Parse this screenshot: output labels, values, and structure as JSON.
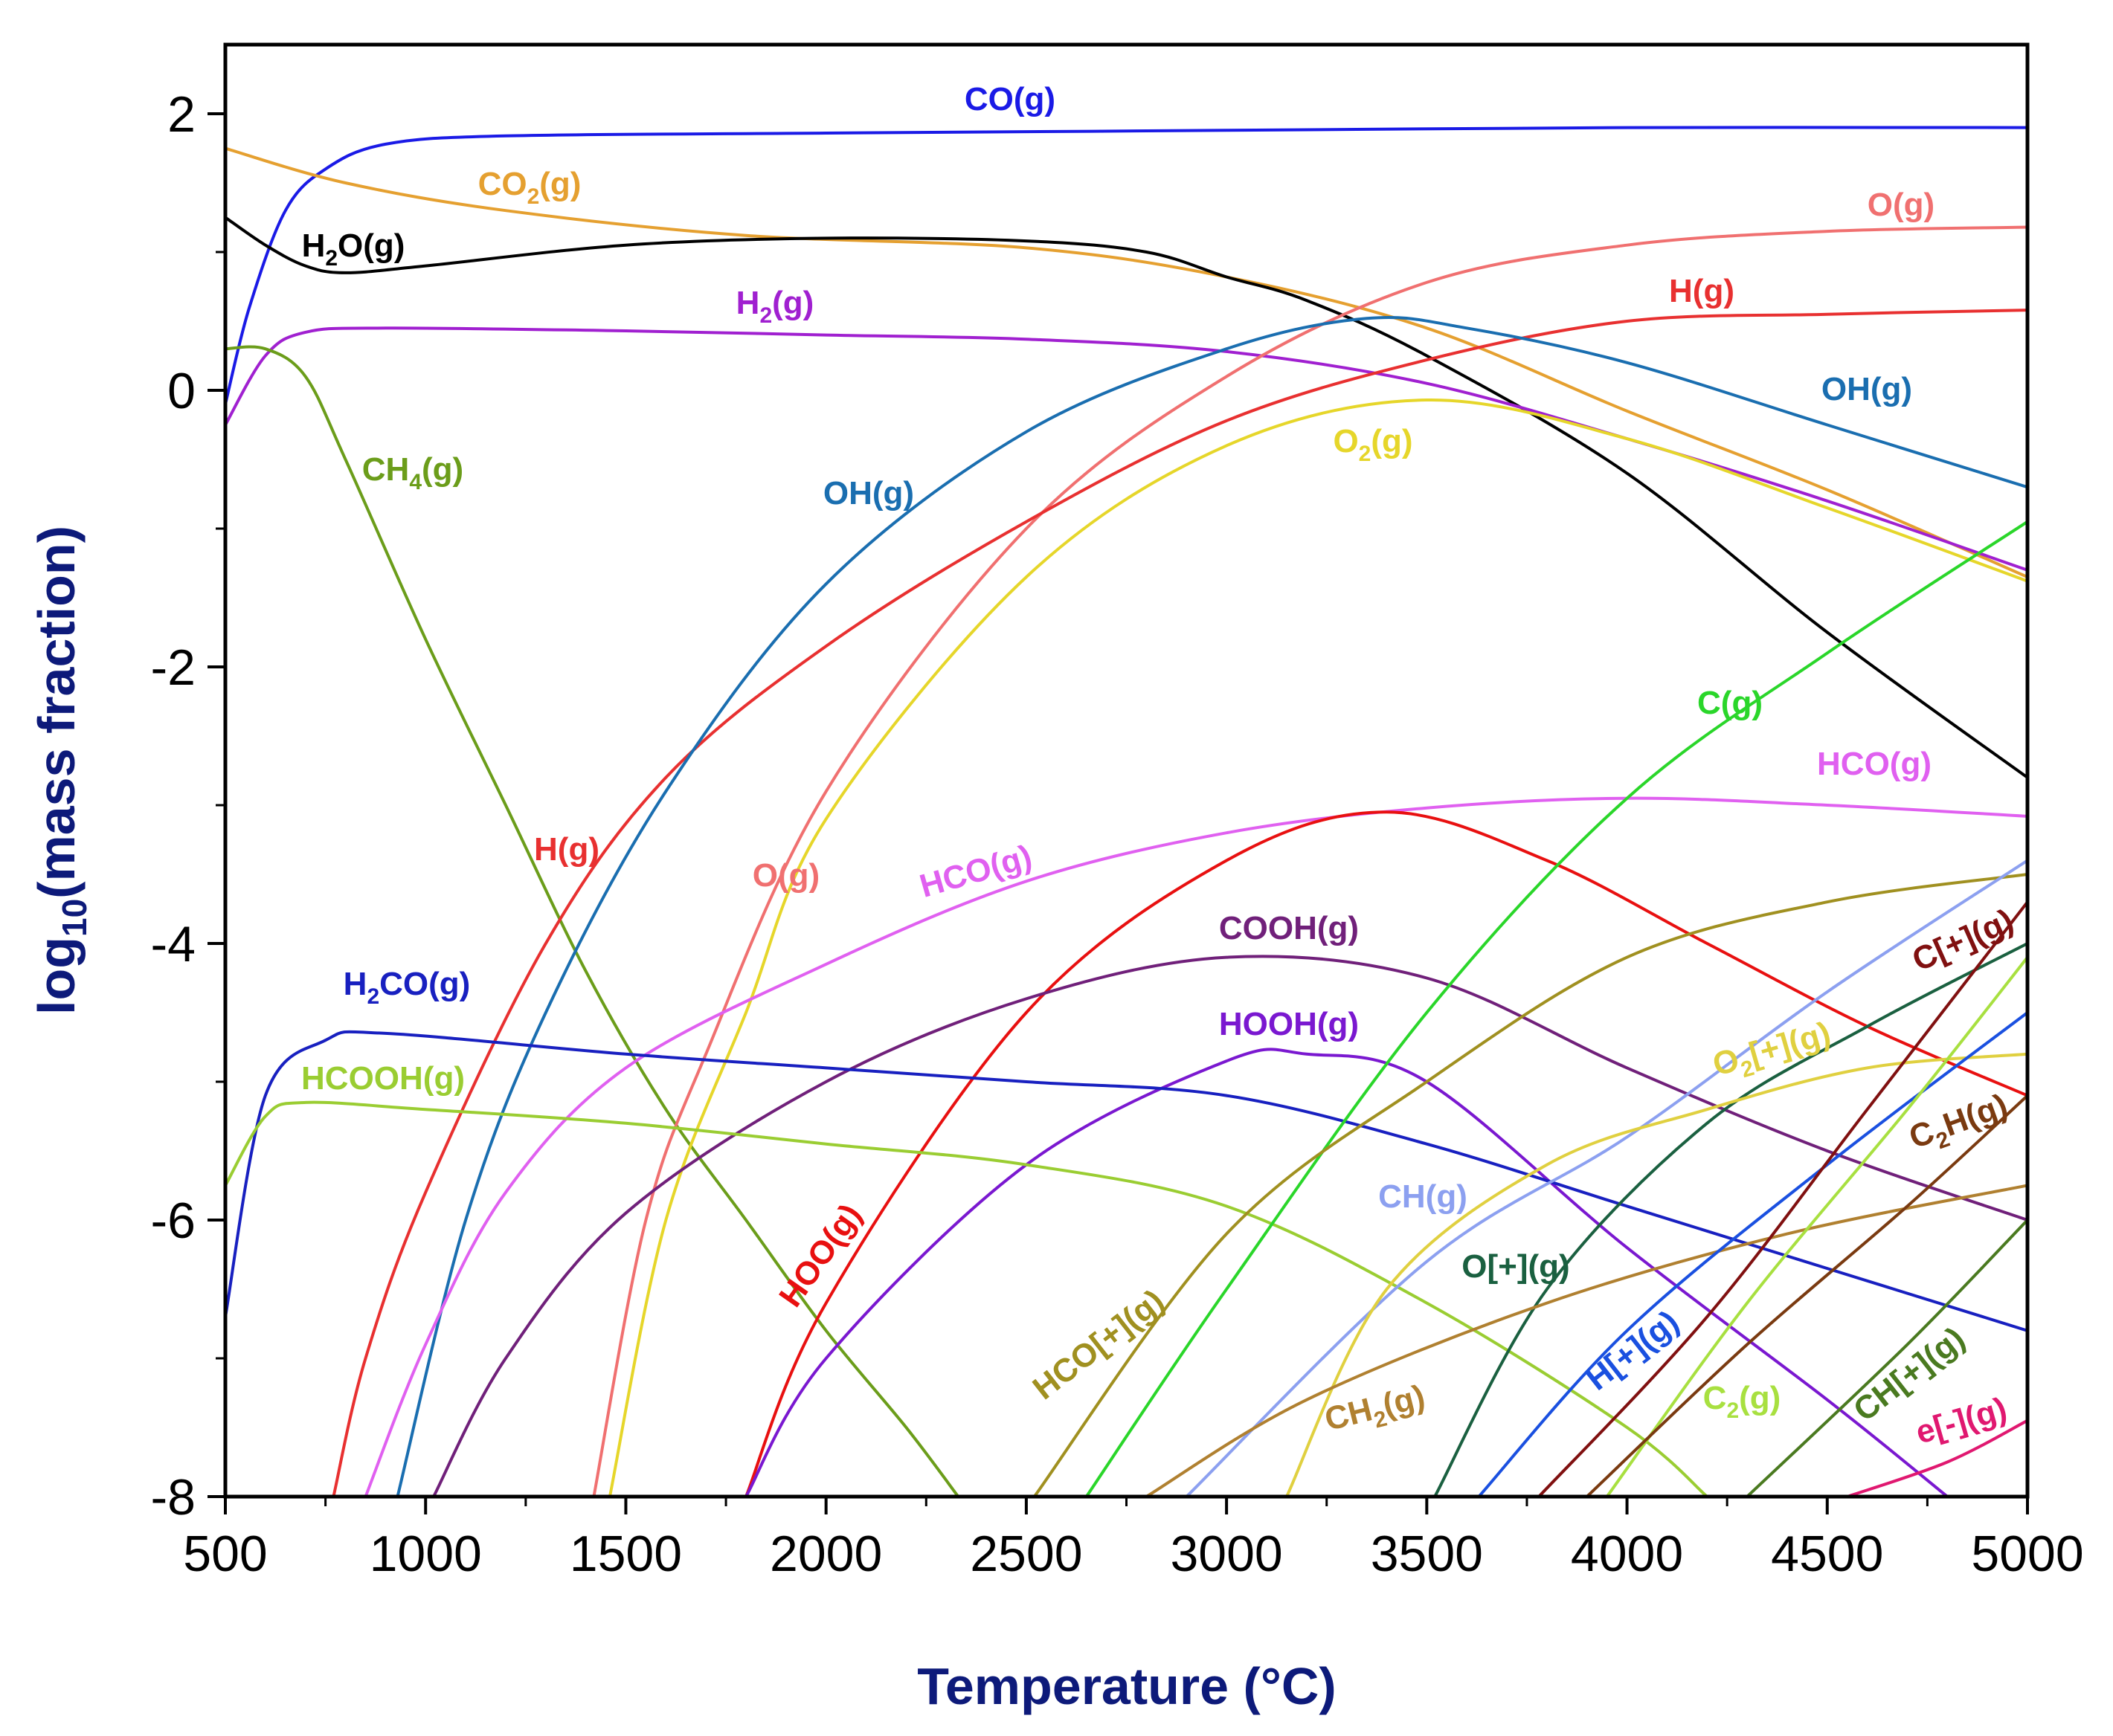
{
  "chart_data": {
    "type": "line",
    "title": "",
    "xlabel": "Temperature (°C)",
    "ylabel": "log10(mass fraction)",
    "xlim": [
      500,
      5000
    ],
    "ylim": [
      -8,
      2.5
    ],
    "xticks": [
      500,
      1000,
      1500,
      2000,
      2500,
      3000,
      3500,
      4000,
      4500,
      5000
    ],
    "yticks": [
      2,
      0,
      -2,
      -4,
      -6,
      -8
    ],
    "xtick_labels": [
      "500",
      "1000",
      "1500",
      "2000",
      "2500",
      "3000",
      "3500",
      "4000",
      "4500",
      "5000"
    ],
    "ytick_labels": [
      "2",
      "0",
      "-2",
      "-4",
      "-6",
      "-8"
    ],
    "series": [
      {
        "name": "CO(g)",
        "color": "#1a1ae6",
        "points": [
          [
            500,
            -0.1
          ],
          [
            560,
            0.6
          ],
          [
            650,
            1.3
          ],
          [
            750,
            1.6
          ],
          [
            900,
            1.78
          ],
          [
            1200,
            1.84
          ],
          [
            2000,
            1.86
          ],
          [
            3000,
            1.88
          ],
          [
            4000,
            1.9
          ],
          [
            5000,
            1.9
          ]
        ]
      },
      {
        "name": "CO2(g)",
        "color": "#e5a030",
        "points": [
          [
            500,
            1.75
          ],
          [
            800,
            1.5
          ],
          [
            1200,
            1.3
          ],
          [
            1800,
            1.12
          ],
          [
            2500,
            1.03
          ],
          [
            3000,
            0.82
          ],
          [
            3500,
            0.45
          ],
          [
            4000,
            -0.15
          ],
          [
            4500,
            -0.72
          ],
          [
            5000,
            -1.35
          ]
        ]
      },
      {
        "name": "H2O(g)",
        "color": "#000000",
        "points": [
          [
            500,
            1.25
          ],
          [
            600,
            1.05
          ],
          [
            700,
            0.9
          ],
          [
            800,
            0.85
          ],
          [
            1000,
            0.9
          ],
          [
            1500,
            1.05
          ],
          [
            2000,
            1.1
          ],
          [
            2500,
            1.08
          ],
          [
            2800,
            1.0
          ],
          [
            3000,
            0.82
          ],
          [
            3200,
            0.65
          ],
          [
            3500,
            0.25
          ],
          [
            4000,
            -0.6
          ],
          [
            4500,
            -1.75
          ],
          [
            5000,
            -2.8
          ]
        ]
      },
      {
        "name": "H2(g)",
        "color": "#a020d0",
        "points": [
          [
            500,
            -0.25
          ],
          [
            600,
            0.25
          ],
          [
            700,
            0.42
          ],
          [
            900,
            0.45
          ],
          [
            1500,
            0.43
          ],
          [
            2000,
            0.4
          ],
          [
            2500,
            0.37
          ],
          [
            3000,
            0.28
          ],
          [
            3500,
            0.05
          ],
          [
            4000,
            -0.35
          ],
          [
            4500,
            -0.8
          ],
          [
            5000,
            -1.3
          ]
        ]
      },
      {
        "name": "CH4(g)",
        "color": "#6b9d1a",
        "points": [
          [
            500,
            0.3
          ],
          [
            600,
            0.3
          ],
          [
            700,
            0.1
          ],
          [
            800,
            -0.5
          ],
          [
            1000,
            -1.8
          ],
          [
            1200,
            -3.0
          ],
          [
            1400,
            -4.2
          ],
          [
            1600,
            -5.2
          ],
          [
            1800,
            -6.0
          ],
          [
            2000,
            -6.8
          ],
          [
            2200,
            -7.5
          ],
          [
            2330,
            -8.0
          ]
        ]
      },
      {
        "name": "O(g)",
        "color": "#f07070",
        "points": [
          [
            1420,
            -8.0
          ],
          [
            1550,
            -6.0
          ],
          [
            1700,
            -4.8
          ],
          [
            2000,
            -2.9
          ],
          [
            2500,
            -1.0
          ],
          [
            3000,
            0.1
          ],
          [
            3500,
            0.78
          ],
          [
            4000,
            1.05
          ],
          [
            4500,
            1.15
          ],
          [
            5000,
            1.18
          ]
        ]
      },
      {
        "name": "H(g)",
        "color": "#e83030",
        "points": [
          [
            770,
            -8.0
          ],
          [
            850,
            -7.0
          ],
          [
            1000,
            -5.8
          ],
          [
            1300,
            -4.0
          ],
          [
            1600,
            -2.8
          ],
          [
            2000,
            -1.85
          ],
          [
            2500,
            -0.95
          ],
          [
            3000,
            -0.22
          ],
          [
            3500,
            0.22
          ],
          [
            4000,
            0.5
          ],
          [
            4500,
            0.55
          ],
          [
            5000,
            0.58
          ]
        ]
      },
      {
        "name": "OH(g)",
        "color": "#1a6eb0",
        "points": [
          [
            930,
            -8.0
          ],
          [
            1100,
            -6.0
          ],
          [
            1300,
            -4.5
          ],
          [
            1600,
            -2.9
          ],
          [
            2000,
            -1.4
          ],
          [
            2500,
            -0.3
          ],
          [
            3000,
            0.3
          ],
          [
            3350,
            0.52
          ],
          [
            3600,
            0.45
          ],
          [
            4000,
            0.2
          ],
          [
            4500,
            -0.25
          ],
          [
            5000,
            -0.7
          ]
        ]
      },
      {
        "name": "O2(g)",
        "color": "#e6d62a",
        "points": [
          [
            1460,
            -8.0
          ],
          [
            1600,
            -6.0
          ],
          [
            1800,
            -4.5
          ],
          [
            2000,
            -3.1
          ],
          [
            2500,
            -1.35
          ],
          [
            3000,
            -0.4
          ],
          [
            3500,
            -0.07
          ],
          [
            4000,
            -0.35
          ],
          [
            4500,
            -0.85
          ],
          [
            5000,
            -1.38
          ]
        ]
      },
      {
        "name": "HCO(g)",
        "color": "#e060f0",
        "points": [
          [
            850,
            -8.0
          ],
          [
            1000,
            -6.9
          ],
          [
            1200,
            -5.8
          ],
          [
            1500,
            -4.9
          ],
          [
            2000,
            -4.15
          ],
          [
            2500,
            -3.55
          ],
          [
            3000,
            -3.2
          ],
          [
            3500,
            -3.02
          ],
          [
            4000,
            -2.95
          ],
          [
            4500,
            -3.0
          ],
          [
            5000,
            -3.08
          ]
        ]
      },
      {
        "name": "HOO(g)",
        "color": "#e81010",
        "points": [
          [
            1800,
            -8.0
          ],
          [
            2000,
            -6.6
          ],
          [
            2500,
            -4.5
          ],
          [
            3000,
            -3.4
          ],
          [
            3400,
            -3.05
          ],
          [
            3800,
            -3.4
          ],
          [
            4200,
            -4.0
          ],
          [
            4600,
            -4.6
          ],
          [
            5000,
            -5.1
          ]
        ]
      },
      {
        "name": "COOH(g)",
        "color": "#70207a",
        "points": [
          [
            1020,
            -8.0
          ],
          [
            1200,
            -7.0
          ],
          [
            1500,
            -5.95
          ],
          [
            2000,
            -5.0
          ],
          [
            2500,
            -4.4
          ],
          [
            3000,
            -4.1
          ],
          [
            3500,
            -4.25
          ],
          [
            4000,
            -4.9
          ],
          [
            4500,
            -5.5
          ],
          [
            5000,
            -6.0
          ]
        ]
      },
      {
        "name": "HOOH(g)",
        "color": "#7a18d0",
        "points": [
          [
            1800,
            -8.0
          ],
          [
            2000,
            -7.0
          ],
          [
            2500,
            -5.6
          ],
          [
            3000,
            -4.85
          ],
          [
            3200,
            -4.8
          ],
          [
            3500,
            -5.0
          ],
          [
            4000,
            -6.2
          ],
          [
            4500,
            -7.3
          ],
          [
            4800,
            -8.0
          ]
        ]
      },
      {
        "name": "H2CO(g)",
        "color": "#1820c0",
        "points": [
          [
            500,
            -6.7
          ],
          [
            600,
            -5.1
          ],
          [
            750,
            -4.7
          ],
          [
            900,
            -4.65
          ],
          [
            1500,
            -4.8
          ],
          [
            2000,
            -4.9
          ],
          [
            2500,
            -5.0
          ],
          [
            3000,
            -5.1
          ],
          [
            3500,
            -5.45
          ],
          [
            4000,
            -5.9
          ],
          [
            4500,
            -6.35
          ],
          [
            5000,
            -6.8
          ]
        ]
      },
      {
        "name": "HCOOH(g)",
        "color": "#9acd32",
        "points": [
          [
            500,
            -5.75
          ],
          [
            600,
            -5.25
          ],
          [
            700,
            -5.15
          ],
          [
            1000,
            -5.2
          ],
          [
            1500,
            -5.3
          ],
          [
            2000,
            -5.45
          ],
          [
            2500,
            -5.6
          ],
          [
            3000,
            -5.9
          ],
          [
            3500,
            -6.6
          ],
          [
            4000,
            -7.5
          ],
          [
            4200,
            -8.0
          ]
        ]
      },
      {
        "name": "C(g)",
        "color": "#2ad62a",
        "points": [
          [
            2650,
            -8.0
          ],
          [
            3000,
            -6.5
          ],
          [
            3500,
            -4.5
          ],
          [
            4000,
            -2.95
          ],
          [
            4500,
            -1.9
          ],
          [
            5000,
            -0.95
          ]
        ]
      },
      {
        "name": "HCO[+](g)",
        "color": "#a09020",
        "points": [
          [
            2520,
            -8.0
          ],
          [
            3000,
            -6.1
          ],
          [
            3500,
            -5.0
          ],
          [
            4000,
            -4.1
          ],
          [
            4500,
            -3.7
          ],
          [
            5000,
            -3.5
          ]
        ]
      },
      {
        "name": "CH(g)",
        "color": "#8ca0f0",
        "points": [
          [
            2900,
            -8.0
          ],
          [
            3500,
            -6.3
          ],
          [
            4000,
            -5.4
          ],
          [
            4500,
            -4.35
          ],
          [
            5000,
            -3.4
          ]
        ]
      },
      {
        "name": "O[+](g)",
        "color": "#1a6040",
        "points": [
          [
            3520,
            -8.0
          ],
          [
            3800,
            -6.5
          ],
          [
            4200,
            -5.3
          ],
          [
            4600,
            -4.6
          ],
          [
            5000,
            -4.0
          ]
        ]
      },
      {
        "name": "O2[+](g)",
        "color": "#e0d040",
        "points": [
          [
            3150,
            -8.0
          ],
          [
            3400,
            -6.5
          ],
          [
            3800,
            -5.6
          ],
          [
            4200,
            -5.2
          ],
          [
            4600,
            -4.9
          ],
          [
            5000,
            -4.8
          ]
        ]
      },
      {
        "name": "CH2(g)",
        "color": "#b08030",
        "points": [
          [
            2800,
            -8.0
          ],
          [
            3200,
            -7.3
          ],
          [
            3800,
            -6.6
          ],
          [
            4400,
            -6.1
          ],
          [
            5000,
            -5.75
          ]
        ]
      },
      {
        "name": "H[+](g)",
        "color": "#1a50e0",
        "points": [
          [
            3630,
            -8.0
          ],
          [
            4000,
            -6.8
          ],
          [
            4500,
            -5.6
          ],
          [
            5000,
            -4.5
          ]
        ]
      },
      {
        "name": "C2(g)",
        "color": "#a8e040",
        "points": [
          [
            3950,
            -8.0
          ],
          [
            4300,
            -6.6
          ],
          [
            4700,
            -5.2
          ],
          [
            5000,
            -4.1
          ]
        ]
      },
      {
        "name": "C[+](g)",
        "color": "#801010",
        "points": [
          [
            3780,
            -8.0
          ],
          [
            4200,
            -6.7
          ],
          [
            4600,
            -5.2
          ],
          [
            5000,
            -3.7
          ]
        ]
      },
      {
        "name": "C2H(g)",
        "color": "#7a3a10",
        "points": [
          [
            3900,
            -8.0
          ],
          [
            4300,
            -6.9
          ],
          [
            4700,
            -5.9
          ],
          [
            5000,
            -5.1
          ]
        ]
      },
      {
        "name": "CH[+](g)",
        "color": "#4a7a20",
        "points": [
          [
            4300,
            -8.0
          ],
          [
            4700,
            -6.9
          ],
          [
            5000,
            -6.0
          ]
        ]
      },
      {
        "name": "e[-](g)",
        "color": "#e01870",
        "points": [
          [
            4550,
            -8.0
          ],
          [
            4800,
            -7.75
          ],
          [
            5000,
            -7.45
          ]
        ]
      }
    ],
    "labels": [
      {
        "id": "co",
        "text": "CO(g)",
        "color": "#1a1ae6"
      },
      {
        "id": "co2",
        "text": "CO",
        "sub": "2",
        "tail": "(g)",
        "color": "#e5a030"
      },
      {
        "id": "h2o",
        "text": "H",
        "sub": "2",
        "tail": "O(g)",
        "color": "#000000"
      },
      {
        "id": "h2",
        "text": "H",
        "sub": "2",
        "tail": "(g)",
        "color": "#a020d0"
      },
      {
        "id": "ch4",
        "text": "CH",
        "sub": "4",
        "tail": "(g)",
        "color": "#6b9d1a"
      },
      {
        "id": "oh-mid",
        "text": "OH(g)",
        "color": "#1a6eb0"
      },
      {
        "id": "o2",
        "text": "O",
        "sub": "2",
        "tail": "(g)",
        "color": "#e6d62a"
      },
      {
        "id": "o-right",
        "text": "O(g)",
        "color": "#f07070"
      },
      {
        "id": "h-right",
        "text": "H(g)",
        "color": "#e83030"
      },
      {
        "id": "oh-right",
        "text": "OH(g)",
        "color": "#1a6eb0"
      },
      {
        "id": "c",
        "text": "C(g)",
        "color": "#2ad62a"
      },
      {
        "id": "hco-right",
        "text": "HCO(g)",
        "color": "#e060f0"
      },
      {
        "id": "h-left",
        "text": "H(g)",
        "color": "#e83030"
      },
      {
        "id": "o-left",
        "text": "O(g)",
        "color": "#f07070"
      },
      {
        "id": "hco-mid",
        "text": "HCO(g)",
        "color": "#e060f0"
      },
      {
        "id": "cooh",
        "text": "COOH(g)",
        "color": "#70207a"
      },
      {
        "id": "h2co",
        "text": "H",
        "sub": "2",
        "tail": "CO(g)",
        "color": "#1820c0"
      },
      {
        "id": "hooh",
        "text": "HOOH(g)",
        "color": "#7a18d0"
      },
      {
        "id": "hcooh",
        "text": "HCOOH(g)",
        "color": "#9acd32"
      },
      {
        "id": "c-plus",
        "text": "C[+](g)",
        "color": "#801010"
      },
      {
        "id": "o2-plus",
        "text": "O",
        "sub": "2",
        "tail": "[+](g)",
        "color": "#e0d040"
      },
      {
        "id": "c2h",
        "text": "C",
        "sub": "2",
        "tail": "H(g)",
        "color": "#7a3a10"
      },
      {
        "id": "hoo",
        "text": "HOO(g)",
        "color": "#e81010"
      },
      {
        "id": "ch",
        "text": "CH(g)",
        "color": "#8ca0f0"
      },
      {
        "id": "o-plus",
        "text": "O[+](g)",
        "color": "#1a6040"
      },
      {
        "id": "hco-plus",
        "text": "HCO[+](g)",
        "color": "#a09020"
      },
      {
        "id": "ch2",
        "text": "CH",
        "sub": "2",
        "tail": "(g)",
        "color": "#b08030"
      },
      {
        "id": "h-plus",
        "text": "H[+](g)",
        "color": "#1a50e0"
      },
      {
        "id": "c2",
        "text": "C",
        "sub": "2",
        "tail": "(g)",
        "color": "#a8e040"
      },
      {
        "id": "ch-plus",
        "text": "CH[+](g)",
        "color": "#4a7a20"
      },
      {
        "id": "e-minus",
        "text": "e[-](g)",
        "color": "#e01870"
      }
    ]
  }
}
